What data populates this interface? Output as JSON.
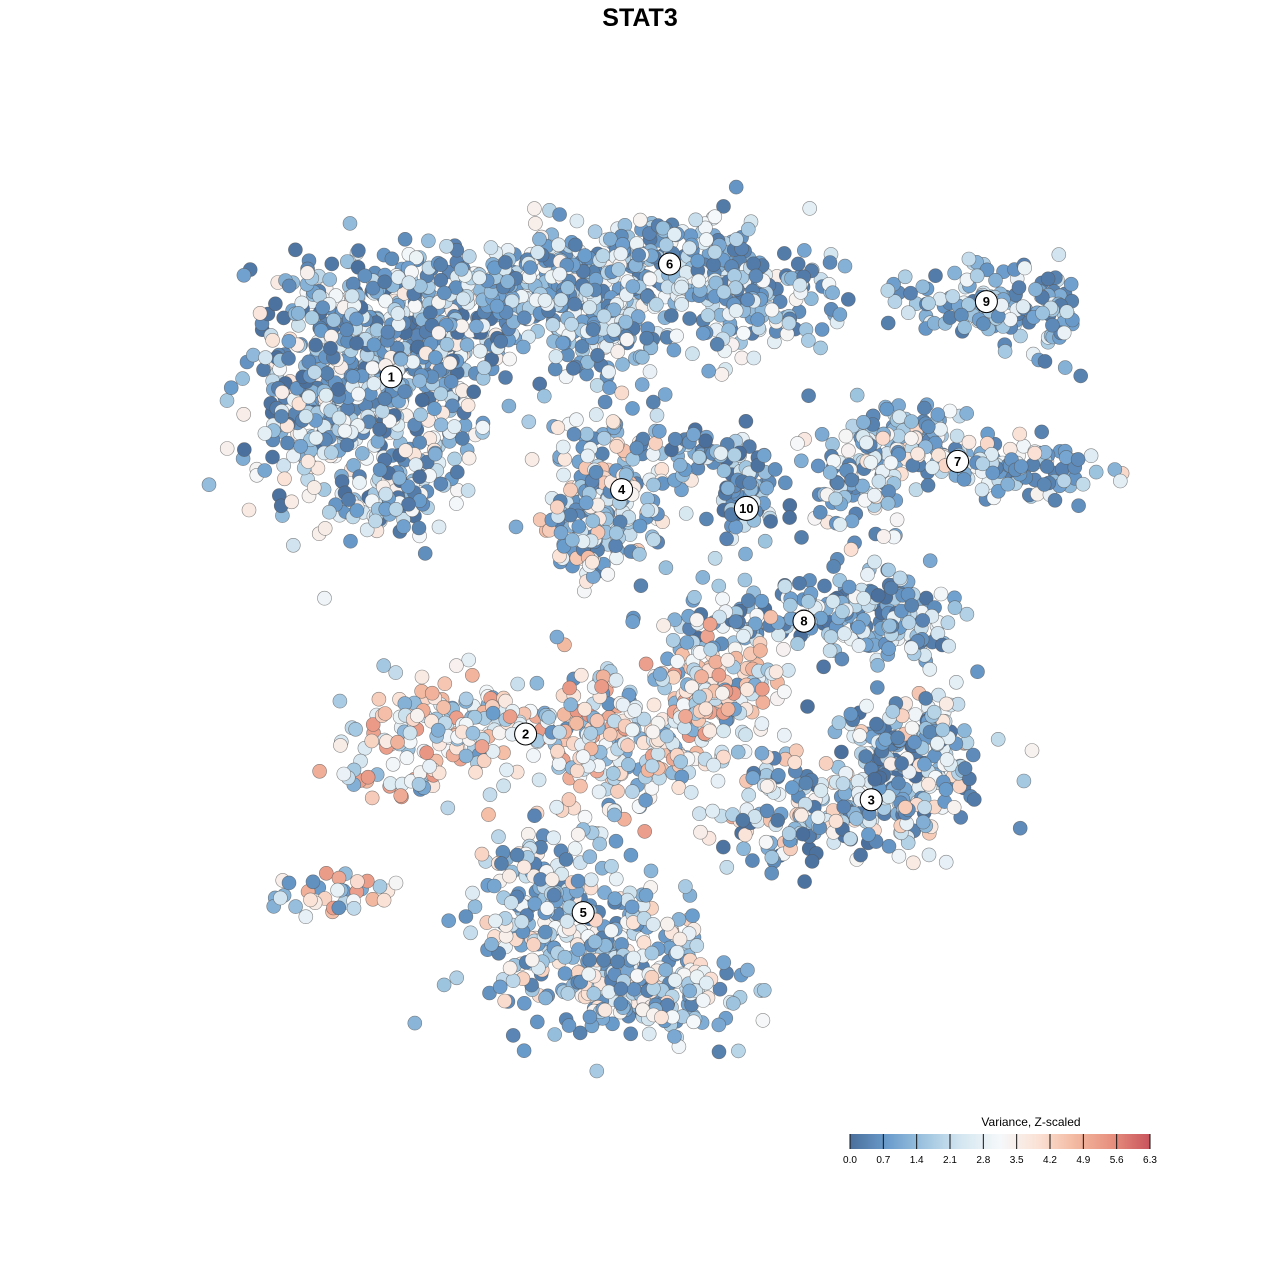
{
  "chart_data": {
    "type": "scatter",
    "title": "STAT3",
    "xlabel": "",
    "ylabel": "",
    "grid": false,
    "legend": {
      "title": "Variance, Z-scaled",
      "placement": "bottom-right",
      "range": [
        0.0,
        6.3
      ],
      "ticks": [
        "0.0",
        "0.7",
        "1.4",
        "2.1",
        "2.8",
        "3.5",
        "4.2",
        "4.9",
        "5.6",
        "6.3"
      ],
      "colors": [
        "#4a6f9c",
        "#6a9ccc",
        "#9fc5e0",
        "#d6e7f1",
        "#f5f8fa",
        "#fbe2d6",
        "#f3b9a1",
        "#e78f7e",
        "#c8535c"
      ]
    },
    "clusters": [
      {
        "label": "1",
        "x": 0.22,
        "y": 0.78,
        "value_range": [
          0.0,
          3.9
        ]
      },
      {
        "label": "2",
        "x": 0.36,
        "y": 0.4,
        "value_range": [
          0.5,
          5.4
        ]
      },
      {
        "label": "3",
        "x": 0.72,
        "y": 0.33,
        "value_range": [
          0.0,
          4.5
        ]
      },
      {
        "label": "4",
        "x": 0.46,
        "y": 0.66,
        "value_range": [
          0.3,
          4.7
        ]
      },
      {
        "label": "5",
        "x": 0.42,
        "y": 0.21,
        "value_range": [
          0.3,
          4.3
        ]
      },
      {
        "label": "6",
        "x": 0.51,
        "y": 0.9,
        "value_range": [
          0.2,
          3.5
        ]
      },
      {
        "label": "7",
        "x": 0.81,
        "y": 0.69,
        "value_range": [
          0.3,
          4.2
        ]
      },
      {
        "label": "8",
        "x": 0.65,
        "y": 0.52,
        "value_range": [
          0.0,
          3.4
        ]
      },
      {
        "label": "9",
        "x": 0.84,
        "y": 0.86,
        "value_range": [
          0.2,
          3.0
        ]
      },
      {
        "label": "10",
        "x": 0.59,
        "y": 0.64,
        "value_range": [
          0.0,
          2.8
        ]
      }
    ]
  }
}
